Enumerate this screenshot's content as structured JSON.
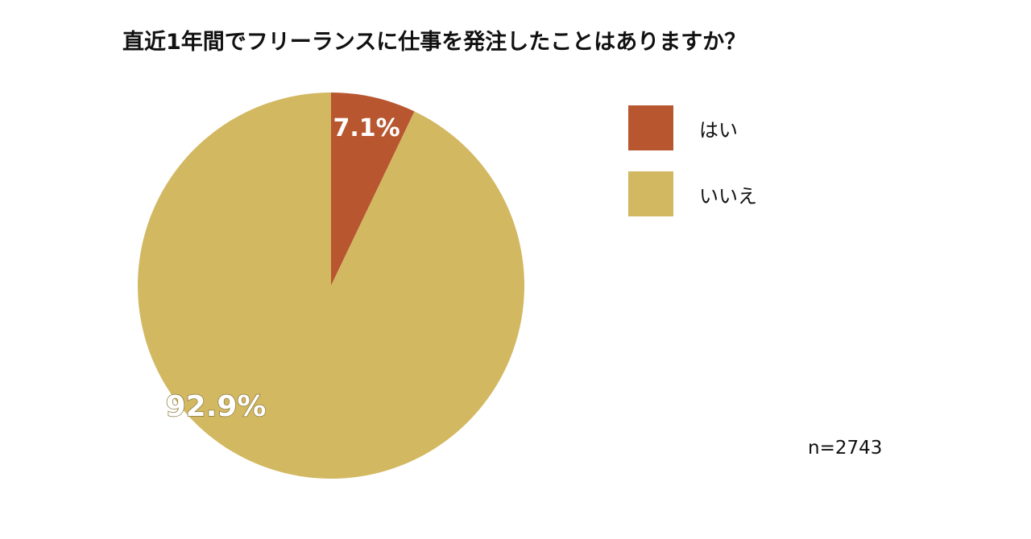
{
  "chart_data": {
    "type": "pie",
    "title": "直近1年間でフリーランスに仕事を発注したことはありますか？",
    "slices": [
      {
        "label": "はい",
        "value": 7.1,
        "display": "7.1%",
        "color": "#b85630"
      },
      {
        "label": "いいえ",
        "value": 92.9,
        "display": "92.9%",
        "color": "#d3b862"
      }
    ],
    "legend_position": "right",
    "sample_size": "n=2743"
  }
}
